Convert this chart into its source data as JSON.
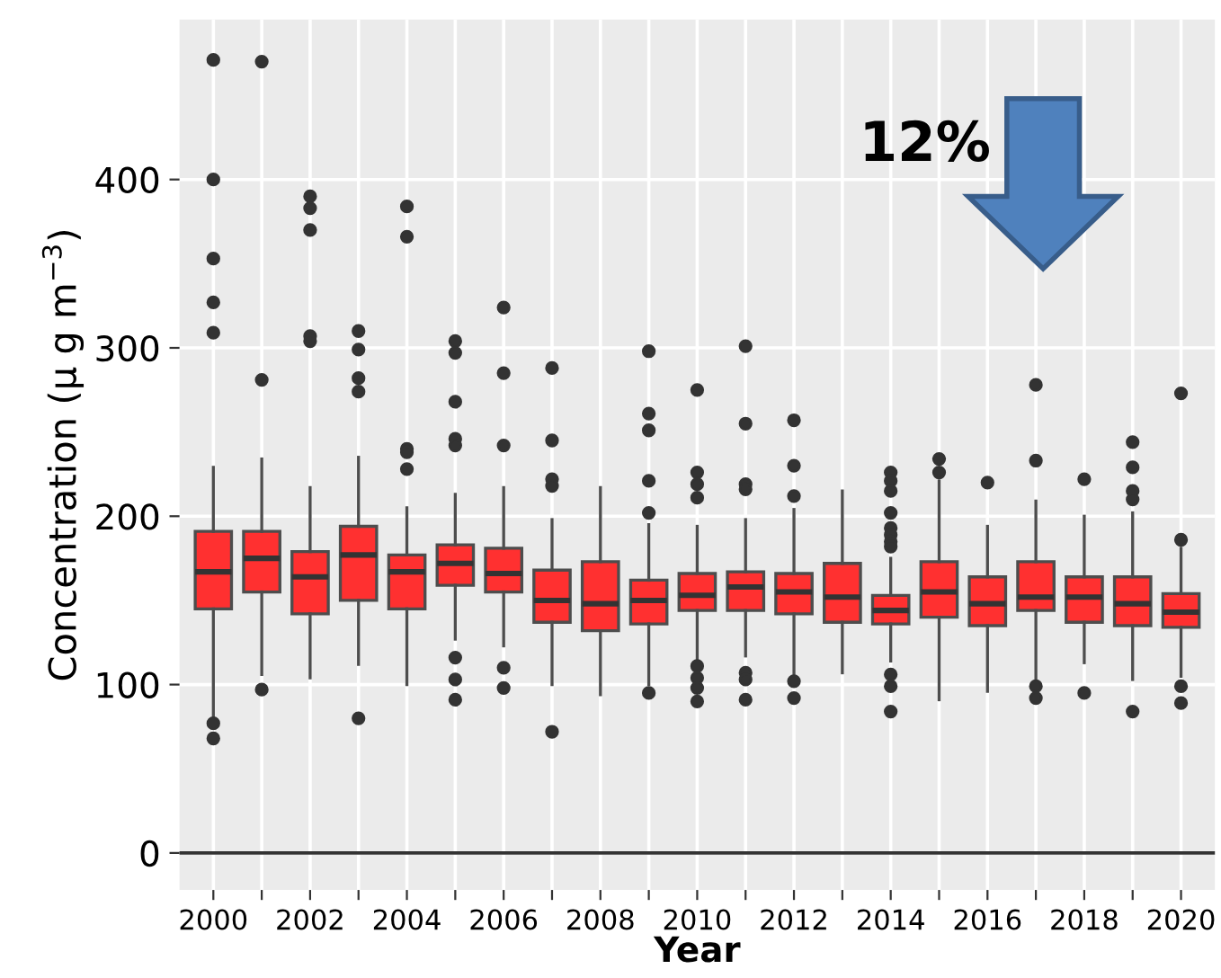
{
  "chart_data": {
    "type": "box",
    "xlabel": "Year",
    "ylabel": "Concentration (μ g m$^{−3}$)",
    "categories": [
      "2000",
      null,
      "2002",
      null,
      "2004",
      null,
      "2006",
      null,
      "2008",
      null,
      "2010",
      null,
      "2012",
      null,
      "2014",
      null,
      "2016",
      null,
      "2018",
      null,
      "2020"
    ],
    "series": [
      {
        "color": "#ff3030",
        "boxes": [
          {
            "low": 80,
            "q1": 145,
            "median": 167,
            "q3": 191,
            "high": 229,
            "outliers": [
              471,
              400,
              353,
              327,
              309,
              77,
              68
            ]
          },
          {
            "low": 106,
            "q1": 155,
            "median": 175,
            "q3": 191,
            "high": 234,
            "outliers": [
              470,
              281,
              97
            ]
          },
          {
            "low": 104,
            "q1": 142,
            "median": 164,
            "q3": 179,
            "high": 217,
            "outliers": [
              390,
              383,
              370,
              307,
              304
            ]
          },
          {
            "low": 112,
            "q1": 150,
            "median": 177,
            "q3": 194,
            "high": 235,
            "outliers": [
              310,
              299,
              282,
              274,
              80
            ]
          },
          {
            "low": 100,
            "q1": 145,
            "median": 167,
            "q3": 177,
            "high": 205,
            "outliers": [
              384,
              366,
              240,
              238,
              228
            ]
          },
          {
            "low": 127,
            "q1": 159,
            "median": 172,
            "q3": 183,
            "high": 213,
            "outliers": [
              304,
              297,
              268,
              246,
              242,
              116,
              103,
              91
            ]
          },
          {
            "low": 123,
            "q1": 155,
            "median": 166,
            "q3": 181,
            "high": 217,
            "outliers": [
              324,
              285,
              242,
              110,
              98
            ]
          },
          {
            "low": 100,
            "q1": 137,
            "median": 150,
            "q3": 168,
            "high": 198,
            "outliers": [
              288,
              245,
              222,
              218,
              72
            ]
          },
          {
            "low": 94,
            "q1": 132,
            "median": 148,
            "q3": 173,
            "high": 217
          },
          {
            "low": 100,
            "q1": 136,
            "median": 150,
            "q3": 162,
            "high": 195,
            "outliers": [
              298,
              261,
              251,
              221,
              202,
              95
            ]
          },
          {
            "low": 113,
            "q1": 144,
            "median": 153,
            "q3": 166,
            "high": 194,
            "outliers": [
              275,
              226,
              219,
              211,
              111,
              104,
              98,
              90
            ]
          },
          {
            "low": 117,
            "q1": 144,
            "median": 158,
            "q3": 167,
            "high": 198,
            "outliers": [
              301,
              255,
              219,
              216,
              107,
              103,
              91
            ]
          },
          {
            "low": 105,
            "q1": 142,
            "median": 155,
            "q3": 166,
            "high": 204,
            "outliers": [
              257,
              230,
              212,
              102,
              92
            ]
          },
          {
            "low": 107,
            "q1": 137,
            "median": 152,
            "q3": 172,
            "high": 215
          },
          {
            "low": 114,
            "q1": 136,
            "median": 144,
            "q3": 153,
            "high": 175,
            "outliers": [
              226,
              221,
              215,
              202,
              193,
              189,
              185,
              182,
              106,
              99,
              84
            ]
          },
          {
            "low": 91,
            "q1": 140,
            "median": 155,
            "q3": 173,
            "high": 221,
            "outliers": [
              234,
              226
            ]
          },
          {
            "low": 96,
            "q1": 135,
            "median": 148,
            "q3": 164,
            "high": 194,
            "outliers": [
              220
            ]
          },
          {
            "low": 100,
            "q1": 144,
            "median": 152,
            "q3": 173,
            "high": 209,
            "outliers": [
              278,
              233,
              99,
              92
            ]
          },
          {
            "low": 113,
            "q1": 137,
            "median": 152,
            "q3": 164,
            "high": 200,
            "outliers": [
              222,
              95
            ]
          },
          {
            "low": 103,
            "q1": 135,
            "median": 148,
            "q3": 164,
            "high": 202,
            "outliers": [
              244,
              229,
              215,
              210,
              84
            ]
          },
          {
            "low": 105,
            "q1": 134,
            "median": 143,
            "q3": 154,
            "high": 181,
            "outliers": [
              273,
              186,
              99,
              89
            ]
          }
        ]
      }
    ],
    "ylim": [
      -22,
      495
    ],
    "yticks": [
      0,
      100,
      200,
      300,
      400
    ],
    "grid": true,
    "ref_lines": [
      {
        "axis": "y",
        "value": 0,
        "color": "#333333"
      }
    ],
    "annotations": [
      "12%"
    ]
  }
}
